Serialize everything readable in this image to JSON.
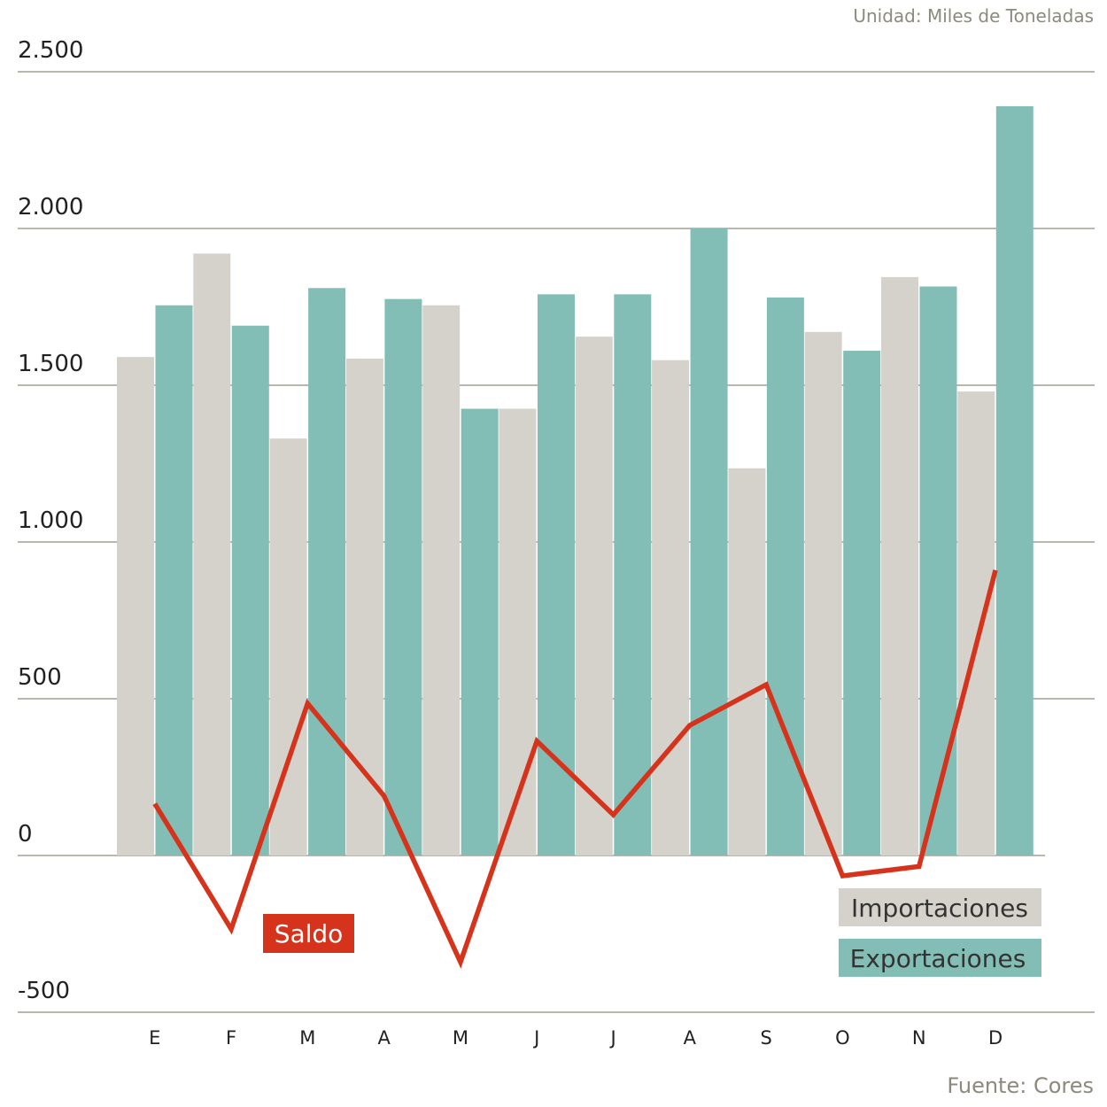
{
  "unit_note": "Unidad: Miles de Toneladas",
  "source_note": "Fuente: Cores",
  "colors": {
    "importaciones": "#d5d2cb",
    "exportaciones": "#82beb5",
    "saldo": "#d6331c",
    "grid": "#8f8d80"
  },
  "chart_data": {
    "type": "bar",
    "categories": [
      "E",
      "F",
      "M",
      "A",
      "M",
      "J",
      "J",
      "A",
      "S",
      "O",
      "N",
      "D"
    ],
    "ylim": [
      -500,
      2500
    ],
    "yticks": [
      -500,
      0,
      500,
      1000,
      1500,
      2000,
      2500
    ],
    "ytick_labels": [
      "-500",
      "0",
      "500",
      "1.000",
      "1.500",
      "2.000",
      "2.500"
    ],
    "grid": true,
    "legend_position": "bottom-right",
    "series": [
      {
        "name": "Importaciones",
        "type": "bar",
        "values": [
          1590,
          1920,
          1330,
          1585,
          1755,
          1425,
          1655,
          1580,
          1235,
          1670,
          1845,
          1480
        ]
      },
      {
        "name": "Exportaciones",
        "type": "bar",
        "values": [
          1755,
          1690,
          1810,
          1775,
          1425,
          1790,
          1790,
          2000,
          1780,
          1610,
          1815,
          2390
        ]
      },
      {
        "name": "Saldo",
        "type": "line",
        "values": [
          165,
          -235,
          485,
          190,
          -340,
          365,
          130,
          415,
          545,
          -65,
          -35,
          910
        ]
      }
    ]
  }
}
